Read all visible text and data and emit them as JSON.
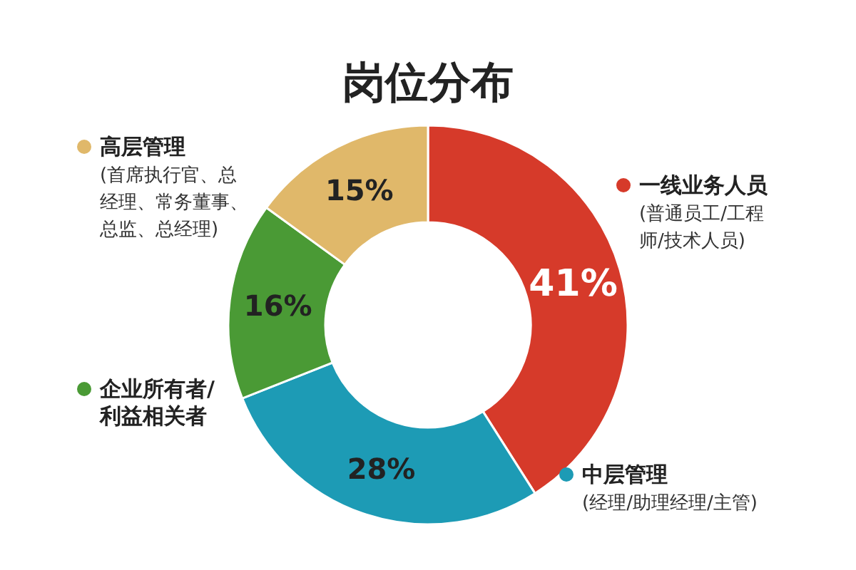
{
  "chart_data": {
    "type": "donut",
    "title": "岗位分布",
    "categories": [
      "一线业务人员\n(普通员工/工程师/技术人员)",
      "中层管理\n(经理/助理经理/主管)",
      "企业所有者/利益相关者",
      "高层管理\n(首席执行官、总经理、常务董事、总监、总经理)"
    ],
    "values": [
      41,
      28,
      16,
      15
    ],
    "value_labels": [
      "41%",
      "28%",
      "16%",
      "15%"
    ],
    "colors": [
      "#d63a2a",
      "#1d9bb5",
      "#4a9a35",
      "#e0b86a"
    ],
    "legend": "right"
  }
}
